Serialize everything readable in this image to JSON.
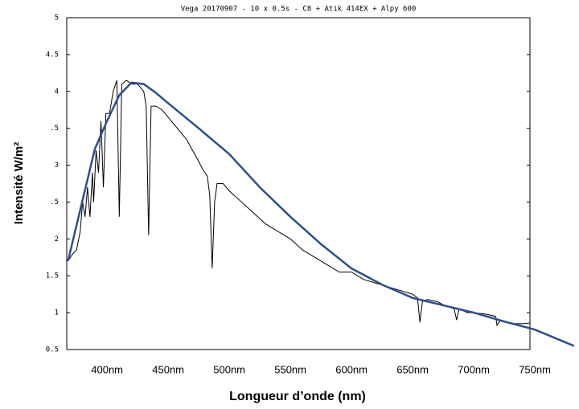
{
  "chart_data": {
    "type": "line",
    "title": "Vega 20170907 - 10 x 0.5s - C8 + Atik 414EX + Alpy 600",
    "xlabel": "Longueur d’onde (nm)",
    "ylabel": "Intensité W/m²",
    "xlim": [
      367,
      746
    ],
    "ylim": [
      0.5,
      5
    ],
    "xticks": [
      {
        "value": 400,
        "label": "400nm"
      },
      {
        "value": 450,
        "label": "450nm"
      },
      {
        "value": 500,
        "label": "500nm"
      },
      {
        "value": 550,
        "label": "550nm"
      },
      {
        "value": 600,
        "label": "600nm"
      },
      {
        "value": 650,
        "label": "650nm"
      },
      {
        "value": 700,
        "label": "700nm"
      },
      {
        "value": 750,
        "label": "750nm"
      }
    ],
    "yticks": [
      {
        "value": 0.5,
        "label": "0.5"
      },
      1,
      1.5,
      2,
      {
        "value": 2.5,
        "label": ".5"
      },
      3,
      {
        "value": 3.5,
        "label": ".5"
      },
      4,
      4.5,
      5
    ],
    "series": [
      {
        "color": "#000000",
        "x": [
          368,
          372,
          375,
          378,
          380,
          382,
          384,
          386,
          388,
          389,
          391,
          393,
          395,
          397,
          399,
          402,
          405,
          408,
          410,
          412,
          416,
          420,
          425,
          430,
          432,
          434,
          436,
          440,
          445,
          450,
          455,
          460,
          465,
          470,
          475,
          478,
          482,
          484,
          486,
          488,
          490,
          495,
          500,
          510,
          520,
          530,
          540,
          550,
          560,
          570,
          580,
          590,
          600,
          610,
          620,
          630,
          640,
          650,
          654,
          656,
          658,
          662,
          670,
          676,
          684,
          686,
          688,
          695,
          700,
          710,
          718,
          719,
          722,
          730,
          740,
          746
        ],
        "values": [
          1.7,
          1.8,
          1.85,
          2.1,
          2.5,
          2.3,
          2.7,
          2.3,
          2.9,
          2.5,
          3.2,
          2.9,
          3.6,
          2.7,
          3.7,
          3.7,
          4.0,
          4.15,
          2.3,
          4.1,
          4.15,
          4.1,
          4.1,
          4.0,
          3.8,
          2.05,
          3.8,
          3.8,
          3.75,
          3.65,
          3.55,
          3.45,
          3.35,
          3.2,
          3.05,
          2.95,
          2.85,
          2.6,
          1.6,
          2.5,
          2.75,
          2.75,
          2.65,
          2.5,
          2.35,
          2.2,
          2.1,
          2.0,
          1.85,
          1.75,
          1.65,
          1.55,
          1.55,
          1.45,
          1.4,
          1.35,
          1.3,
          1.25,
          1.2,
          0.87,
          1.15,
          1.18,
          1.15,
          1.1,
          1.05,
          0.9,
          1.05,
          1.0,
          1.0,
          0.98,
          0.95,
          0.83,
          0.9,
          0.85,
          0.85,
          0.86
        ]
      },
      {
        "color": "#2e4f8c",
        "x": [
          368,
          379,
          390,
          400,
          410,
          420,
          430,
          440,
          450,
          475,
          500,
          525,
          550,
          575,
          600,
          625,
          650,
          675,
          700,
          725,
          750,
          782
        ],
        "values": [
          1.7,
          2.46,
          3.22,
          3.6,
          3.95,
          4.12,
          4.1,
          3.98,
          3.84,
          3.5,
          3.15,
          2.7,
          2.3,
          1.93,
          1.6,
          1.38,
          1.2,
          1.1,
          1.0,
          0.88,
          0.77,
          0.55
        ]
      }
    ]
  }
}
